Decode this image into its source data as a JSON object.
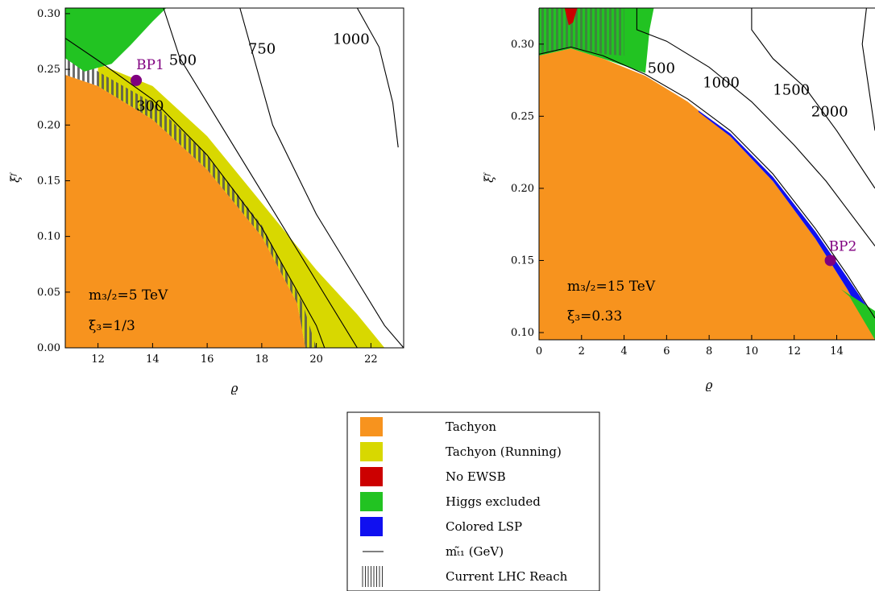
{
  "legend": {
    "items": [
      {
        "label": "Tachyon",
        "color": "#F7931E",
        "kind": "swatch"
      },
      {
        "label": "Tachyon (Running)",
        "color": "#D8D800",
        "kind": "swatch"
      },
      {
        "label": "No EWSB",
        "color": "#CC0000",
        "kind": "swatch"
      },
      {
        "label": "Higgs excluded",
        "color": "#22C322",
        "kind": "swatch"
      },
      {
        "label": "Colored LSP",
        "color": "#1010F0",
        "kind": "swatch"
      },
      {
        "label": "mₜ̃₁ (GeV)",
        "color": "#000000",
        "kind": "line"
      },
      {
        "label": "Current LHC Reach",
        "color": "#555555",
        "kind": "hatch"
      }
    ]
  },
  "chart_data": [
    {
      "type": "contour",
      "xlabel": "ϱ",
      "ylabel": "ξᶠ",
      "xlim": [
        10.8,
        23.2
      ],
      "ylim": [
        0.0,
        0.305
      ],
      "xticks": [
        "12",
        "14",
        "16",
        "18",
        "20",
        "22"
      ],
      "yticks": [
        "0.00",
        "0.05",
        "0.10",
        "0.15",
        "0.20",
        "0.25",
        "0.30"
      ],
      "annotations": [
        "m₃/₂=5 TeV",
        "ξ₃=1/3"
      ],
      "benchmark": {
        "label": "BP1",
        "x": 13.4,
        "y": 0.24
      },
      "regions": {
        "tachyon": [
          [
            10.8,
            0.245
          ],
          [
            12.0,
            0.235
          ],
          [
            14.0,
            0.205
          ],
          [
            16.0,
            0.16
          ],
          [
            18.0,
            0.1
          ],
          [
            19.3,
            0.04
          ],
          [
            19.6,
            0.0
          ],
          [
            10.8,
            0.0
          ]
        ],
        "tachyon_running": [
          [
            12.0,
            0.255
          ],
          [
            14.0,
            0.235
          ],
          [
            16.0,
            0.19
          ],
          [
            18.0,
            0.13
          ],
          [
            20.0,
            0.07
          ],
          [
            21.5,
            0.03
          ],
          [
            22.5,
            0.0
          ],
          [
            19.6,
            0.0
          ],
          [
            19.3,
            0.04
          ],
          [
            18.0,
            0.1
          ],
          [
            16.0,
            0.16
          ],
          [
            14.0,
            0.205
          ],
          [
            12.0,
            0.235
          ]
        ],
        "higgs_excluded": [
          [
            10.8,
            0.305
          ],
          [
            14.5,
            0.305
          ],
          [
            14.0,
            0.293
          ],
          [
            13.2,
            0.272
          ],
          [
            12.5,
            0.255
          ],
          [
            11.5,
            0.248
          ],
          [
            10.8,
            0.26
          ]
        ],
        "lhc_reach": [
          [
            10.8,
            0.27
          ],
          [
            12.0,
            0.248
          ],
          [
            14.0,
            0.22
          ],
          [
            16.0,
            0.173
          ],
          [
            18.0,
            0.11
          ],
          [
            19.5,
            0.04
          ],
          [
            20.0,
            0.0
          ],
          [
            19.6,
            0.0
          ],
          [
            19.3,
            0.04
          ],
          [
            18.0,
            0.1
          ],
          [
            16.0,
            0.16
          ],
          [
            14.0,
            0.205
          ],
          [
            12.0,
            0.235
          ],
          [
            10.8,
            0.245
          ]
        ]
      },
      "contours": [
        {
          "label": "300",
          "points": [
            [
              10.8,
              0.278
            ],
            [
              12.0,
              0.258
            ],
            [
              14.0,
              0.223
            ],
            [
              16.0,
              0.173
            ],
            [
              18.0,
              0.108
            ],
            [
              20.0,
              0.02
            ],
            [
              20.3,
              0.0
            ]
          ],
          "label_at": [
            13.4,
            0.213
          ]
        },
        {
          "label": "500",
          "points": [
            [
              14.4,
              0.305
            ],
            [
              15.0,
              0.26
            ],
            [
              16.5,
              0.2
            ],
            [
              18.0,
              0.14
            ],
            [
              20.0,
              0.06
            ],
            [
              21.5,
              0.0
            ]
          ],
          "label_at": [
            14.6,
            0.254
          ]
        },
        {
          "label": "750",
          "points": [
            [
              17.2,
              0.305
            ],
            [
              17.6,
              0.27
            ],
            [
              18.4,
              0.2
            ],
            [
              20.0,
              0.12
            ],
            [
              21.5,
              0.06
            ],
            [
              22.5,
              0.02
            ],
            [
              23.2,
              0.0
            ]
          ],
          "label_at": [
            17.5,
            0.264
          ]
        },
        {
          "label": "1000",
          "points": [
            [
              21.5,
              0.305
            ],
            [
              22.3,
              0.27
            ],
            [
              22.8,
              0.22
            ],
            [
              23.0,
              0.18
            ]
          ],
          "label_at": [
            20.6,
            0.273
          ]
        }
      ]
    },
    {
      "type": "contour",
      "xlabel": "ϱ",
      "ylabel": "ξᶠ",
      "xlim": [
        0.0,
        15.8
      ],
      "ylim": [
        0.095,
        0.325
      ],
      "xticks": [
        "0",
        "2",
        "4",
        "6",
        "8",
        "10",
        "12",
        "14"
      ],
      "yticks": [
        "0.10",
        "0.15",
        "0.20",
        "0.25",
        "0.30"
      ],
      "annotations": [
        "m₃/₂=15 TeV",
        "ξ₃=0.33"
      ],
      "benchmark": {
        "label": "BP2",
        "x": 13.7,
        "y": 0.15
      },
      "regions": {
        "tachyon": [
          [
            0.0,
            0.292
          ],
          [
            1.5,
            0.297
          ],
          [
            3.0,
            0.29
          ],
          [
            5.0,
            0.278
          ],
          [
            7.0,
            0.26
          ],
          [
            9.0,
            0.236
          ],
          [
            11.0,
            0.205
          ],
          [
            13.0,
            0.165
          ],
          [
            14.5,
            0.13
          ],
          [
            15.8,
            0.095
          ],
          [
            0.0,
            0.095
          ]
        ],
        "colored_lsp": [
          [
            7.5,
            0.254
          ],
          [
            9.0,
            0.238
          ],
          [
            11.0,
            0.208
          ],
          [
            13.0,
            0.17
          ],
          [
            14.5,
            0.138
          ],
          [
            15.8,
            0.11
          ],
          [
            15.8,
            0.095
          ],
          [
            14.5,
            0.13
          ],
          [
            13.0,
            0.165
          ],
          [
            11.0,
            0.205
          ],
          [
            9.0,
            0.236
          ],
          [
            7.5,
            0.253
          ]
        ],
        "higgs_excluded": [
          [
            0.0,
            0.325
          ],
          [
            5.4,
            0.325
          ],
          [
            5.2,
            0.31
          ],
          [
            5.0,
            0.28
          ],
          [
            3.0,
            0.29
          ],
          [
            1.5,
            0.297
          ],
          [
            0.0,
            0.292
          ]
        ],
        "higgs_excluded_low": [
          [
            14.2,
            0.13
          ],
          [
            15.8,
            0.115
          ],
          [
            15.8,
            0.095
          ],
          [
            14.6,
            0.125
          ]
        ],
        "no_ewsb": [
          [
            1.2,
            0.325
          ],
          [
            1.8,
            0.325
          ],
          [
            1.6,
            0.315
          ],
          [
            1.4,
            0.313
          ]
        ],
        "lhc_reach": [
          [
            0.0,
            0.325
          ],
          [
            4.0,
            0.325
          ],
          [
            4.0,
            0.292
          ],
          [
            3.0,
            0.293
          ],
          [
            1.5,
            0.298
          ],
          [
            0.0,
            0.293
          ]
        ]
      },
      "contours": [
        {
          "label": "500",
          "points": [
            [
              0.0,
              0.293
            ],
            [
              1.5,
              0.298
            ],
            [
              3.0,
              0.292
            ],
            [
              5.0,
              0.279
            ],
            [
              7.0,
              0.262
            ],
            [
              9.0,
              0.24
            ],
            [
              11.0,
              0.21
            ],
            [
              13.0,
              0.172
            ],
            [
              14.5,
              0.14
            ],
            [
              15.8,
              0.11
            ]
          ],
          "label_at": [
            5.1,
            0.28
          ]
        },
        {
          "label": "1000",
          "points": [
            [
              4.6,
              0.325
            ],
            [
              4.6,
              0.31
            ],
            [
              6.0,
              0.302
            ],
            [
              8.0,
              0.284
            ],
            [
              10.0,
              0.26
            ],
            [
              12.0,
              0.23
            ],
            [
              13.5,
              0.205
            ],
            [
              15.8,
              0.16
            ]
          ],
          "label_at": [
            7.7,
            0.27
          ]
        },
        {
          "label": "1500",
          "points": [
            [
              10.0,
              0.325
            ],
            [
              10.0,
              0.31
            ],
            [
              11.0,
              0.29
            ],
            [
              12.5,
              0.27
            ],
            [
              14.0,
              0.24
            ],
            [
              15.8,
              0.2
            ]
          ],
          "label_at": [
            11.0,
            0.265
          ]
        },
        {
          "label": "2000",
          "points": [
            [
              15.4,
              0.325
            ],
            [
              15.2,
              0.3
            ],
            [
              15.5,
              0.27
            ],
            [
              15.8,
              0.24
            ]
          ],
          "label_at": [
            12.8,
            0.25
          ]
        }
      ]
    }
  ]
}
